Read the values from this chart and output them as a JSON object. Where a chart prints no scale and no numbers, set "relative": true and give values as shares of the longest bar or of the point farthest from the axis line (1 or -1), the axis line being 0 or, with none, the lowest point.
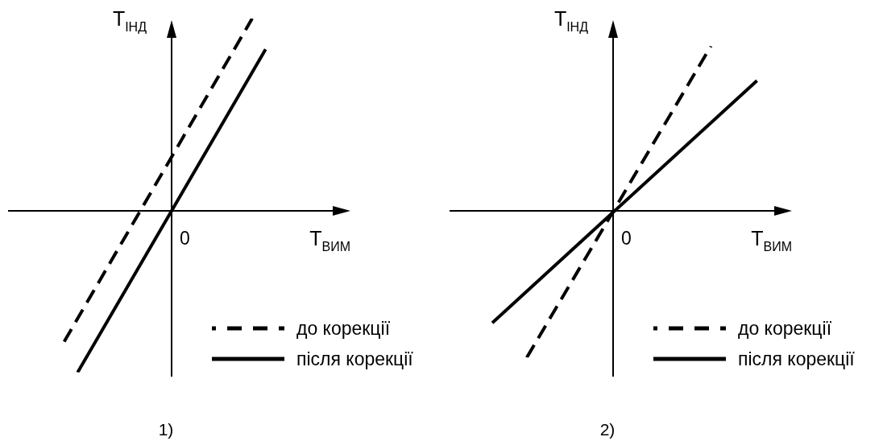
{
  "chart_data": [
    {
      "type": "line",
      "relative": true,
      "xlabel": "T$_{ВИМ}$",
      "ylabel": "T$_{ІНД}$",
      "legend": "bottom right",
      "marker": "none",
      "categories": [
        null,
        null,
        null,
        null,
        null,
        null,
        null,
        null,
        null,
        null,
        null,
        null,
        null,
        null,
        null,
        null,
        null,
        null,
        null,
        null,
        null,
        null,
        null,
        null,
        null,
        null,
        null,
        null,
        null,
        null,
        null,
        null,
        null,
        null,
        null,
        null,
        null,
        null,
        null,
        null,
        null,
        null,
        null,
        null,
        null,
        null,
        null,
        null,
        null
      ],
      "series": [
        {
          "name": "до корекції",
          "color": "#000000",
          "line_style": "dashed",
          "values": [
            null,
            null,
            null,
            null,
            null,
            null,
            null,
            null,
            -0.68,
            null,
            null,
            null,
            null,
            null,
            null,
            null,
            null,
            null,
            null,
            null,
            null,
            null,
            null,
            null,
            null,
            null,
            null,
            null,
            null,
            null,
            null,
            null,
            null,
            null,
            null,
            null,
            1,
            null,
            null,
            null,
            null,
            null,
            null,
            null,
            null,
            null,
            null,
            null,
            null
          ]
        },
        {
          "name": "після корекції",
          "color": "#000000",
          "line_style": "solid",
          "values": [
            null,
            null,
            null,
            null,
            null,
            null,
            null,
            null,
            null,
            null,
            -0.84,
            null,
            null,
            null,
            null,
            null,
            null,
            null,
            null,
            null,
            null,
            null,
            null,
            null,
            null,
            null,
            null,
            null,
            null,
            null,
            null,
            null,
            null,
            null,
            null,
            null,
            null,
            null,
            0.84,
            null,
            null,
            null,
            null,
            null,
            null,
            null,
            null,
            null,
            null
          ]
        }
      ],
      "annotations": [
        "0",
        "1)"
      ]
    },
    {
      "type": "line",
      "relative": true,
      "xlabel": "T$_{ВИМ}$",
      "ylabel": "T$_{ІНД}$",
      "legend": "bottom right",
      "marker": "none",
      "categories": [
        null,
        null,
        null,
        null,
        null,
        null,
        null,
        null,
        null,
        null,
        null,
        null,
        null,
        null,
        null,
        null,
        null,
        null,
        null,
        null,
        null,
        null,
        null,
        null,
        null,
        null,
        null,
        null,
        null,
        null,
        null,
        null,
        null,
        null,
        null,
        null,
        null,
        null,
        null,
        null,
        null,
        null,
        null,
        null,
        null,
        null,
        null,
        null,
        null,
        null,
        null,
        null,
        null,
        null,
        null,
        null,
        null
      ],
      "series": [
        {
          "name": "до корекції",
          "color": "#000000",
          "line_style": "dashed",
          "values": [
            null,
            null,
            null,
            null,
            null,
            null,
            null,
            null,
            null,
            null,
            null,
            null,
            null,
            -0.89,
            null,
            null,
            null,
            null,
            null,
            null,
            null,
            null,
            null,
            null,
            null,
            null,
            null,
            null,
            null,
            null,
            null,
            null,
            null,
            null,
            null,
            null,
            null,
            null,
            null,
            null,
            null,
            null,
            null,
            null,
            null,
            1,
            null,
            null,
            null,
            null,
            null,
            null,
            null,
            null,
            null,
            null,
            null
          ]
        },
        {
          "name": "після корекції",
          "color": "#000000",
          "line_style": "solid",
          "values": [
            null,
            null,
            null,
            null,
            null,
            null,
            null,
            -0.68,
            null,
            null,
            null,
            null,
            null,
            null,
            null,
            null,
            null,
            null,
            null,
            null,
            null,
            null,
            null,
            null,
            null,
            null,
            null,
            null,
            null,
            null,
            null,
            null,
            null,
            null,
            null,
            null,
            null,
            null,
            null,
            null,
            null,
            null,
            null,
            null,
            null,
            null,
            null,
            null,
            null,
            null,
            null,
            null,
            null,
            0.79,
            null,
            null,
            null
          ]
        }
      ],
      "annotations": [
        "0",
        "2)"
      ]
    }
  ]
}
